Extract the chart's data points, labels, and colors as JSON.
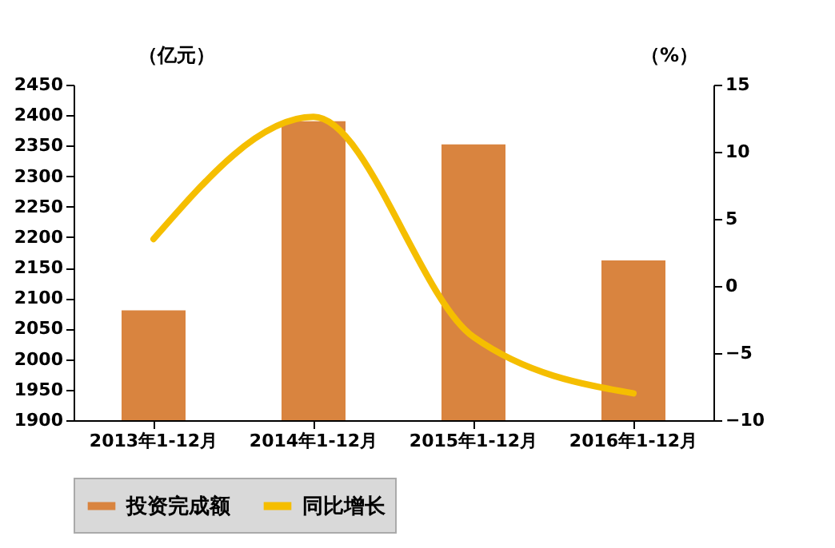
{
  "chart_data": {
    "type": "bar",
    "categories": [
      "2013年1-12月",
      "2014年1-12月",
      "2015年1-12月",
      "2016年1-12月"
    ],
    "series": [
      {
        "name": "投资完成额",
        "color": "#d9843f",
        "values": [
          2080,
          2390,
          2352,
          2162
        ]
      },
      {
        "name": "同比增长",
        "color": "#f5be00",
        "type": "line",
        "axis": "y2",
        "values": [
          3.5,
          12.6,
          -3.8,
          -8.0
        ]
      }
    ],
    "ylabel": "（亿元）",
    "y2label": "（%）",
    "ylim": [
      1900,
      2450
    ],
    "yticks": [
      1900,
      1950,
      2000,
      2050,
      2100,
      2150,
      2200,
      2250,
      2300,
      2350,
      2400,
      2450
    ],
    "y2lim": [
      -10,
      15
    ],
    "y2ticks": [
      -10,
      -5,
      0,
      5,
      10,
      15
    ],
    "legend": "bottom",
    "grid": false
  }
}
